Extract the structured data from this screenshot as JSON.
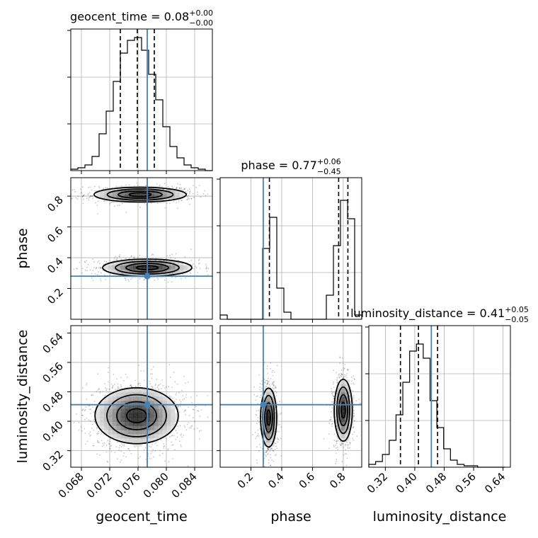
{
  "chart_data": [
    {
      "type": "histogram",
      "panel": "geocent_time",
      "title": {
        "param": "geocent_time",
        "value": "0.08",
        "plus": "+0.00",
        "minus": "−0.00"
      },
      "xlim": [
        0.0665,
        0.0865
      ],
      "ylim": [
        0,
        1.0
      ],
      "bin_edges": [
        0.0665,
        0.0675,
        0.0685,
        0.0695,
        0.0705,
        0.0715,
        0.0725,
        0.0735,
        0.0745,
        0.0755,
        0.0765,
        0.0775,
        0.0785,
        0.0795,
        0.0805,
        0.0815,
        0.0825,
        0.0835,
        0.0845,
        0.0855,
        0.0865
      ],
      "counts": [
        0.01,
        0.02,
        0.04,
        0.1,
        0.26,
        0.42,
        0.63,
        0.83,
        0.92,
        0.94,
        0.85,
        0.68,
        0.5,
        0.31,
        0.17,
        0.09,
        0.04,
        0.02,
        0.01,
        0.0
      ],
      "quantiles": [
        0.0735,
        0.0759,
        0.0783
      ],
      "truth": 0.0773,
      "xticks": [
        0.068,
        0.072,
        0.076,
        0.08,
        0.084
      ],
      "xtick_labels": [
        "0.068",
        "0.072",
        "0.076",
        "0.080",
        "0.084"
      ],
      "xlabel": "geocent_time"
    },
    {
      "type": "contour",
      "panel": "geocent_time vs phase",
      "x": "geocent_time",
      "y": "phase",
      "xlim": [
        0.0665,
        0.0865
      ],
      "ylim": [
        0.0,
        0.92
      ],
      "modes": [
        {
          "center": [
            0.0763,
            0.81
          ],
          "sx": 0.0031,
          "sy": 0.024
        },
        {
          "center": [
            0.0773,
            0.335
          ],
          "sx": 0.003,
          "sy": 0.028
        }
      ],
      "truth": [
        0.0773,
        0.28
      ],
      "yticks": [
        0.2,
        0.4,
        0.6,
        0.8
      ],
      "ytick_labels": [
        "0.2",
        "0.4",
        "0.6",
        "0.8"
      ],
      "ylabel": "phase"
    },
    {
      "type": "histogram",
      "panel": "phase",
      "title": {
        "param": "phase",
        "value": "0.77",
        "plus": "+0.06",
        "minus": "−0.45"
      },
      "xlim": [
        0.0,
        0.92
      ],
      "ylim": [
        0,
        1.0
      ],
      "bin_edges": [
        0.0,
        0.046,
        0.092,
        0.138,
        0.184,
        0.23,
        0.276,
        0.322,
        0.368,
        0.414,
        0.46,
        0.506,
        0.552,
        0.598,
        0.644,
        0.69,
        0.736,
        0.782,
        0.828,
        0.874,
        0.92
      ],
      "counts": [
        0.03,
        0.0,
        0.0,
        0.0,
        0.0,
        0.0,
        0.5,
        0.72,
        0.22,
        0.05,
        0.0,
        0.0,
        0.0,
        0.0,
        0.0,
        0.17,
        0.52,
        0.84,
        0.71,
        0.03
      ],
      "quantiles": [
        0.32,
        0.77,
        0.83
      ],
      "truth": 0.28,
      "xticks": [
        0.2,
        0.4,
        0.6,
        0.8
      ],
      "xtick_labels": [
        "0.2",
        "0.4",
        "0.6",
        "0.8"
      ],
      "xlabel": "phase"
    },
    {
      "type": "contour",
      "panel": "geocent_time vs luminosity_distance",
      "x": "geocent_time",
      "y": "luminosity_distance",
      "xlim": [
        0.0665,
        0.0865
      ],
      "ylim": [
        0.275,
        0.66
      ],
      "modes": [
        {
          "center": [
            0.0758,
            0.415
          ],
          "sx": 0.0028,
          "sy": 0.038
        }
      ],
      "truth": [
        0.0773,
        0.445
      ],
      "yticks": [
        0.32,
        0.4,
        0.48,
        0.56,
        0.64
      ],
      "ytick_labels": [
        "0.32",
        "0.40",
        "0.48",
        "0.56",
        "0.64"
      ],
      "ylabel": "luminosity_distance"
    },
    {
      "type": "contour",
      "panel": "phase vs luminosity_distance",
      "x": "phase",
      "y": "luminosity_distance",
      "xlim": [
        0.0,
        0.92
      ],
      "ylim": [
        0.275,
        0.66
      ],
      "modes": [
        {
          "center": [
            0.315,
            0.41
          ],
          "sx": 0.025,
          "sy": 0.04
        },
        {
          "center": [
            0.8,
            0.43
          ],
          "sx": 0.028,
          "sy": 0.042
        }
      ],
      "truth": [
        0.28,
        0.445
      ]
    },
    {
      "type": "histogram",
      "panel": "luminosity_distance",
      "title": {
        "param": "luminosity_distance",
        "value": "0.41",
        "plus": "+0.05",
        "minus": "−0.05"
      },
      "xlim": [
        0.275,
        0.66
      ],
      "ylim": [
        0,
        1.0
      ],
      "bin_edges": [
        0.275,
        0.2935,
        0.312,
        0.3305,
        0.349,
        0.3675,
        0.386,
        0.4045,
        0.423,
        0.4415,
        0.46,
        0.4785,
        0.497,
        0.5155,
        0.534,
        0.5525,
        0.571,
        0.5895,
        0.608,
        0.6265,
        0.645
      ],
      "counts": [
        0.02,
        0.04,
        0.09,
        0.19,
        0.37,
        0.6,
        0.82,
        0.87,
        0.77,
        0.47,
        0.28,
        0.13,
        0.05,
        0.02,
        0.01,
        0.01,
        0.0,
        0.0,
        0.0,
        0.0
      ],
      "quantiles": [
        0.361,
        0.41,
        0.462
      ],
      "truth": 0.445,
      "xticks": [
        0.32,
        0.4,
        0.48,
        0.56,
        0.64
      ],
      "xtick_labels": [
        "0.32",
        "0.40",
        "0.48",
        "0.56",
        "0.64"
      ],
      "xlabel": "luminosity_distance"
    }
  ],
  "colors": {
    "truth": "#4682b4",
    "hist": "#000000",
    "grid": "#b0b0b0",
    "points": "#000000"
  }
}
